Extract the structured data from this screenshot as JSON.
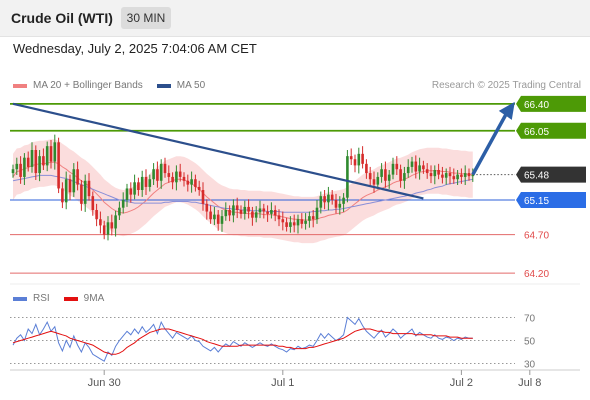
{
  "header": {
    "title": "Crude Oil (WTI)",
    "interval": "30 MIN"
  },
  "timestamp": "Wednesday, July 2, 2025 7:04:06 AM CET",
  "legend": {
    "items": [
      {
        "label": "MA 20 + Bollinger Bands",
        "color": "#f08080"
      },
      {
        "label": "MA 50",
        "color": "#2c4f8c"
      }
    ],
    "copyright": "Research © 2025 Trading Central"
  },
  "rsi_legend": {
    "items": [
      {
        "label": "RSI",
        "color": "#5b7fd6"
      },
      {
        "label": "9MA",
        "color": "#e31010"
      }
    ]
  },
  "chart_data": [
    {
      "type": "line",
      "name": "price",
      "ylim": [
        63.98,
        66.58
      ],
      "x_ticks": [
        {
          "label": "Jun 30",
          "bar": 24
        },
        {
          "label": "Jul 1",
          "bar": 71
        },
        {
          "label": "Jul 2",
          "bar": 118
        },
        {
          "label": "Jul 8",
          "bar": 136
        }
      ],
      "levels": [
        {
          "value": 66.4,
          "label": "66.40",
          "kind": "resistance"
        },
        {
          "value": 66.05,
          "label": "66.05",
          "kind": "resistance"
        },
        {
          "value": 65.48,
          "label": "65.48",
          "kind": "last"
        },
        {
          "value": 65.15,
          "label": "65.15",
          "kind": "pivot"
        },
        {
          "value": 64.7,
          "label": "64.70",
          "kind": "support"
        },
        {
          "value": 64.2,
          "label": "64.20",
          "kind": "support"
        }
      ],
      "close": [
        65.55,
        65.62,
        65.45,
        65.7,
        65.58,
        65.8,
        65.5,
        65.72,
        65.6,
        65.85,
        65.65,
        65.9,
        65.3,
        65.12,
        65.42,
        65.25,
        65.55,
        65.35,
        65.1,
        65.4,
        65.2,
        65.02,
        64.9,
        64.82,
        64.7,
        64.86,
        64.78,
        64.95,
        65.05,
        65.15,
        65.3,
        65.22,
        65.38,
        65.28,
        65.45,
        65.32,
        65.42,
        65.55,
        65.4,
        65.62,
        65.5,
        65.45,
        65.38,
        65.52,
        65.45,
        65.4,
        65.35,
        65.42,
        65.32,
        65.28,
        65.1,
        65.0,
        64.9,
        64.96,
        64.84,
        64.94,
        65.02,
        64.95,
        65.08,
        65.02,
        64.97,
        65.06,
        65.0,
        64.92,
        64.99,
        65.04,
        65.0,
        64.97,
        65.02,
        64.95,
        64.9,
        64.86,
        64.8,
        64.86,
        64.82,
        64.9,
        64.84,
        64.88,
        64.94,
        64.9,
        65.05,
        65.2,
        65.12,
        65.22,
        65.15,
        65.05,
        65.1,
        65.18,
        65.72,
        65.68,
        65.6,
        65.75,
        65.62,
        65.5,
        65.42,
        65.35,
        65.45,
        65.55,
        65.4,
        65.48,
        65.62,
        65.55,
        65.4,
        65.5,
        65.58,
        65.65,
        65.52,
        65.6,
        65.55,
        65.5,
        65.46,
        65.54,
        65.48,
        65.44,
        65.5,
        65.46,
        65.42,
        65.48,
        65.45,
        65.5,
        65.46,
        65.48
      ],
      "ma20": [
        65.45,
        65.52,
        65.53,
        65.56,
        65.57,
        65.6,
        65.61,
        65.62,
        65.62,
        65.63,
        65.64,
        65.64,
        65.62,
        65.58,
        65.55,
        65.51,
        65.48,
        65.44,
        65.4,
        65.37,
        65.33,
        65.28,
        65.23,
        65.18,
        65.12,
        65.08,
        65.04,
        65.01,
        64.99,
        64.98,
        64.99,
        65.01,
        65.03,
        65.06,
        65.1,
        65.14,
        65.19,
        65.24,
        65.28,
        65.32,
        65.36,
        65.38,
        65.4,
        65.42,
        65.42,
        65.41,
        65.39,
        65.36,
        65.33,
        65.29,
        65.24,
        65.19,
        65.15,
        65.11,
        65.07,
        65.04,
        65.02,
        65.0,
        64.99,
        64.99,
        64.98,
        64.98,
        64.97,
        64.97,
        64.97,
        64.97,
        64.96,
        64.96,
        64.96,
        64.95,
        64.94,
        64.93,
        64.92,
        64.91,
        64.9,
        64.9,
        64.89,
        64.89,
        64.89,
        64.89,
        64.9,
        64.92,
        64.93,
        64.95,
        64.96,
        64.97,
        64.98,
        64.99,
        65.02,
        65.06,
        65.1,
        65.14,
        65.18,
        65.21,
        65.23,
        65.25,
        65.28,
        65.3,
        65.32,
        65.34,
        65.37,
        65.39,
        65.4,
        65.42,
        65.44,
        65.47,
        65.49,
        65.51,
        65.52,
        65.53,
        65.53,
        65.53,
        65.53,
        65.52,
        65.52,
        65.51,
        65.5,
        65.5,
        65.49,
        65.49,
        65.48,
        65.48
      ],
      "ma50": [
        65.4,
        65.41,
        65.42,
        65.43,
        65.44,
        65.45,
        65.46,
        65.47,
        65.47,
        65.47,
        65.47,
        65.46,
        65.45,
        65.44,
        65.43,
        65.41,
        65.39,
        65.37,
        65.35,
        65.33,
        65.31,
        65.29,
        65.27,
        65.25,
        65.23,
        65.21,
        65.19,
        65.17,
        65.15,
        65.14,
        65.13,
        65.12,
        65.11,
        65.11,
        65.11,
        65.11,
        65.11,
        65.11,
        65.11,
        65.11,
        65.12,
        65.12,
        65.13,
        65.13,
        65.13,
        65.13,
        65.13,
        65.12,
        65.12,
        65.11,
        65.1,
        65.09,
        65.08,
        65.07,
        65.06,
        65.05,
        65.04,
        65.04,
        65.03,
        65.03,
        65.02,
        65.02,
        65.02,
        65.01,
        65.01,
        65.01,
        65.01,
        65.0,
        65.0,
        65.0,
        65.0,
        64.99,
        64.99,
        64.99,
        64.99,
        64.99,
        64.99,
        64.99,
        64.99,
        65.0,
        65.0,
        65.01,
        65.01,
        65.02,
        65.02,
        65.03,
        65.03,
        65.04,
        65.05,
        65.06,
        65.07,
        65.08,
        65.09,
        65.1,
        65.11,
        65.12,
        65.13,
        65.14,
        65.15,
        65.16,
        65.17,
        65.18,
        65.19,
        65.2,
        65.21,
        65.22,
        65.24,
        65.25,
        65.26,
        65.28,
        65.29,
        65.31,
        65.32,
        65.33,
        65.35,
        65.36,
        65.37,
        65.38,
        65.39,
        65.4,
        65.41,
        65.42
      ],
      "bb_width": 0.3,
      "trendline": {
        "from": {
          "bar": 0,
          "value": 66.4
        },
        "to": {
          "bar": 108,
          "value": 65.17
        }
      },
      "projection": {
        "from": {
          "bar": 121,
          "value": 65.48
        },
        "to": {
          "bar": 131,
          "value": 66.4
        }
      }
    },
    {
      "type": "line",
      "name": "rsi",
      "ylim": [
        20,
        80
      ],
      "y_ticks": [
        70,
        50,
        30
      ],
      "series": [
        {
          "name": "RSI",
          "values": [
            46,
            52,
            55,
            50,
            60,
            56,
            64,
            55,
            60,
            66,
            58,
            62,
            48,
            41,
            50,
            44,
            54,
            46,
            40,
            48,
            44,
            38,
            36,
            34,
            32,
            40,
            37,
            45,
            50,
            54,
            58,
            55,
            60,
            56,
            62,
            57,
            60,
            64,
            56,
            66,
            60,
            56,
            52,
            57,
            55,
            53,
            51,
            54,
            50,
            49,
            45,
            43,
            41,
            44,
            40,
            44,
            47,
            45,
            49,
            47,
            45,
            48,
            46,
            44,
            46,
            48,
            46,
            45,
            47,
            45,
            43,
            42,
            40,
            43,
            42,
            45,
            43,
            44,
            46,
            45,
            50,
            56,
            52,
            56,
            53,
            50,
            52,
            55,
            70,
            67,
            64,
            69,
            63,
            58,
            55,
            52,
            56,
            59,
            53,
            56,
            60,
            57,
            52,
            55,
            57,
            60,
            54,
            57,
            55,
            53,
            52,
            55,
            52,
            51,
            53,
            52,
            50,
            52,
            51,
            53,
            52,
            52
          ]
        },
        {
          "name": "9MA",
          "values": [
            48,
            49,
            50,
            51,
            52,
            53,
            54,
            55,
            56,
            57,
            58,
            57,
            56,
            55,
            54,
            52,
            51,
            50,
            49,
            48,
            47,
            46,
            44,
            42,
            40,
            39,
            38,
            38,
            39,
            41,
            44,
            46,
            48,
            51,
            53,
            55,
            57,
            58,
            59,
            60,
            60,
            60,
            59,
            58,
            57,
            56,
            55,
            54,
            53,
            52,
            51,
            49,
            48,
            47,
            46,
            45,
            45,
            45,
            45,
            45,
            46,
            46,
            46,
            46,
            46,
            46,
            46,
            46,
            46,
            46,
            45,
            45,
            44,
            44,
            43,
            43,
            43,
            43,
            44,
            44,
            45,
            46,
            47,
            48,
            49,
            50,
            51,
            52,
            54,
            56,
            58,
            59,
            60,
            60,
            60,
            59,
            58,
            58,
            57,
            57,
            56,
            56,
            56,
            56,
            56,
            56,
            55,
            55,
            55,
            55,
            55,
            54,
            54,
            54,
            54,
            53,
            53,
            53,
            52,
            52,
            52,
            52
          ]
        }
      ]
    }
  ]
}
